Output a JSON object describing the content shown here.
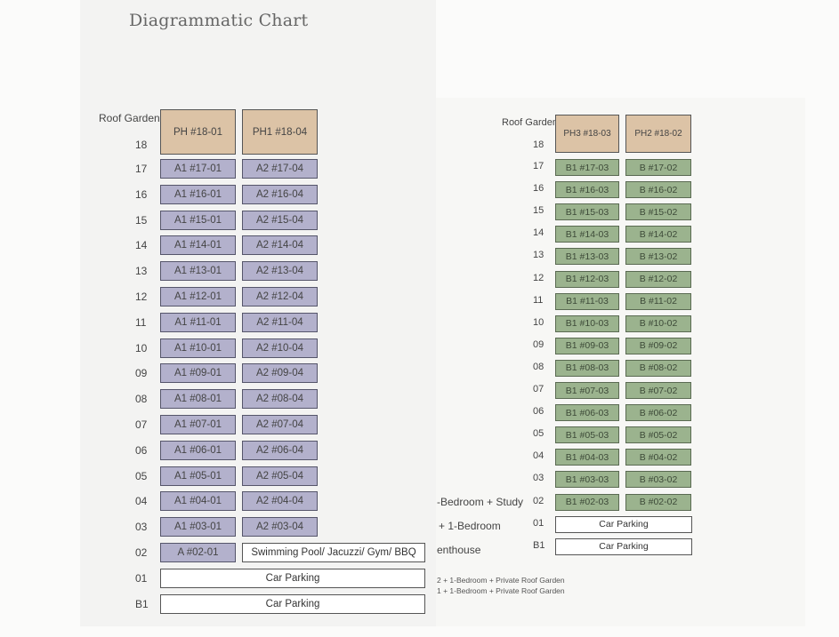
{
  "title": "Diagrammatic Chart",
  "left_block": {
    "roof_label": "Roof Garden",
    "floors": [
      "18",
      "17",
      "16",
      "15",
      "14",
      "13",
      "12",
      "11",
      "10",
      "09",
      "08",
      "07",
      "06",
      "05",
      "04",
      "03",
      "02",
      "01",
      "B1"
    ],
    "penthouses": [
      "PH #18-01",
      "PH1 #18-04"
    ],
    "col1": [
      "A1 #17-01",
      "A1 #16-01",
      "A1 #15-01",
      "A1 #14-01",
      "A1 #13-01",
      "A1 #12-01",
      "A1 #11-01",
      "A1 #10-01",
      "A1 #09-01",
      "A1 #08-01",
      "A1 #07-01",
      "A1 #06-01",
      "A1 #05-01",
      "A1 #04-01",
      "A1 #03-01",
      "A #02-01"
    ],
    "col2": [
      "A2 #17-04",
      "A2 #16-04",
      "A2 #15-04",
      "A2 #14-04",
      "A2 #13-04",
      "A2 #12-04",
      "A2 #11-04",
      "A2 #10-04",
      "A2 #09-04",
      "A2 #08-04",
      "A2 #07-04",
      "A2 #06-04",
      "A2 #05-04",
      "A2 #04-04",
      "A2 #03-04"
    ],
    "facilities": "Swimming Pool/ Jacuzzi/ Gym/ BBQ",
    "parking_01": "Car Parking",
    "parking_b1": "Car Parking"
  },
  "right_block": {
    "roof_label": "Roof Garden",
    "floors": [
      "18",
      "17",
      "16",
      "15",
      "14",
      "13",
      "12",
      "11",
      "10",
      "09",
      "08",
      "07",
      "06",
      "05",
      "04",
      "03",
      "02",
      "01",
      "B1"
    ],
    "penthouses": [
      "PH3 #18-03",
      "PH2 #18-02"
    ],
    "col1": [
      "B1 #17-03",
      "B1 #16-03",
      "B1 #15-03",
      "B1 #14-03",
      "B1 #13-03",
      "B1 #12-03",
      "B1 #11-03",
      "B1 #10-03",
      "B1 #09-03",
      "B1 #08-03",
      "B1 #07-03",
      "B1 #06-03",
      "B1 #05-03",
      "B1 #04-03",
      "B1 #03-03",
      "B1 #02-03"
    ],
    "col2": [
      "B #17-02",
      "B #16-02",
      "B #15-02",
      "B #14-02",
      "B #13-02",
      "B #12-02",
      "B #11-02",
      "B #10-02",
      "B #09-02",
      "B #08-02",
      "B #07-02",
      "B #06-02",
      "B #05-02",
      "B #04-02",
      "B #03-02",
      "B #02-02"
    ],
    "parking_01": "Car Parking",
    "parking_b1": "Car Parking"
  },
  "legend": {
    "item1": "-Bedroom + Study",
    "item2": "+ 1-Bedroom",
    "item3": "enthouse",
    "note1": "2 + 1-Bedroom + Private Roof Garden",
    "note2": "1 + 1-Bedroom + Private Roof Garden"
  },
  "colors": {
    "type_a": "#b3b1cc",
    "type_b": "#9bb38e",
    "penthouse": "#dcc3a6",
    "common": "#ffffff"
  }
}
